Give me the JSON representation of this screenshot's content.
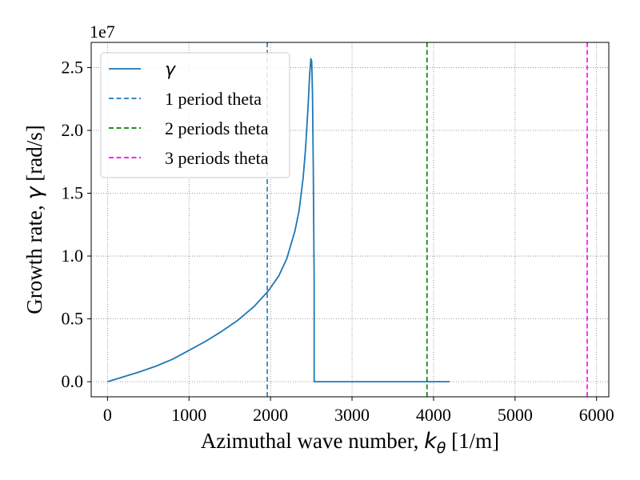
{
  "chart_data": {
    "type": "line",
    "xlabel_prefix": "Azimuthal wave number, ",
    "xlabel_symbol": "k",
    "xlabel_subscript": "θ",
    "xlabel_suffix": " [1/m]",
    "ylabel_prefix": "Growth rate, ",
    "ylabel_symbol": "γ",
    "ylabel_suffix": " [rad/s]",
    "y_offset_text": "1e7",
    "xlim": [
      -200,
      6150
    ],
    "ylim": [
      -0.12,
      2.7
    ],
    "y_scale_factor": 10000000,
    "xticks": [
      0,
      1000,
      2000,
      3000,
      4000,
      5000,
      6000
    ],
    "xtick_labels": [
      "0",
      "1000",
      "2000",
      "3000",
      "4000",
      "5000",
      "6000"
    ],
    "yticks": [
      0.0,
      0.5,
      1.0,
      1.5,
      2.0,
      2.5
    ],
    "ytick_labels": [
      "0.0",
      "0.5",
      "1.0",
      "1.5",
      "2.0",
      "2.5"
    ],
    "grid": true,
    "legend_position": "top-left",
    "series": [
      {
        "name": "γ",
        "style": "solid",
        "color": "#1f77b4",
        "x": [
          0,
          200,
          400,
          600,
          800,
          1000,
          1200,
          1400,
          1600,
          1800,
          1970,
          2100,
          2200,
          2300,
          2350,
          2400,
          2430,
          2460,
          2480,
          2495,
          2505,
          2515,
          2525,
          2535,
          2535,
          3000,
          3500,
          4000,
          4200
        ],
        "y": [
          0.0,
          0.04,
          0.08,
          0.125,
          0.18,
          0.25,
          0.32,
          0.4,
          0.49,
          0.6,
          0.72,
          0.84,
          0.98,
          1.2,
          1.36,
          1.62,
          1.86,
          2.18,
          2.45,
          2.57,
          2.55,
          2.3,
          1.7,
          0.8,
          0.0,
          0.0,
          0.0,
          0.0,
          0.0
        ]
      },
      {
        "name": "1 period theta",
        "style": "dashed",
        "color": "#1f77b4",
        "vline_x": 1960
      },
      {
        "name": "2 periods theta",
        "style": "dashed",
        "color": "#008000",
        "vline_x": 3920
      },
      {
        "name": "3 periods theta",
        "style": "dashed",
        "color": "#ff00ff",
        "vline_x": 5885
      }
    ]
  }
}
